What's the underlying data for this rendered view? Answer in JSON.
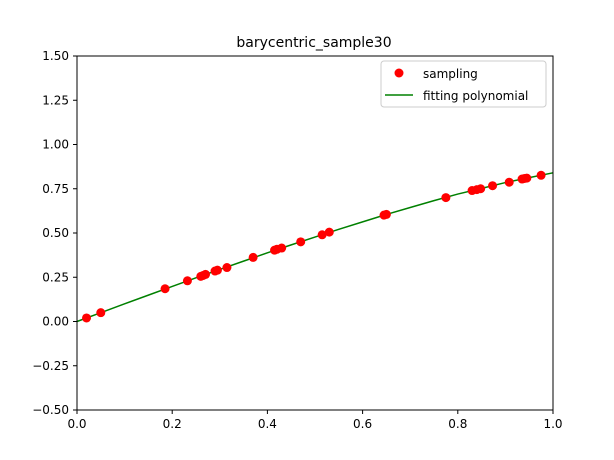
{
  "chart_data": {
    "type": "scatter",
    "title": "barycentric_sample30",
    "xlabel": "",
    "ylabel": "",
    "xlim": [
      0.0,
      1.0
    ],
    "ylim": [
      -0.5,
      1.5
    ],
    "xticks": [
      "0.0",
      "0.2",
      "0.4",
      "0.6",
      "0.8",
      "1.0"
    ],
    "yticks": [
      "−0.50",
      "−0.25",
      "0.00",
      "0.25",
      "0.50",
      "0.75",
      "1.00",
      "1.25",
      "1.50"
    ],
    "grid": false,
    "legend_position": "top-right",
    "series": [
      {
        "name": "sampling",
        "kind": "points",
        "color": "#ff0000",
        "x": [
          0.02,
          0.05,
          0.185,
          0.232,
          0.26,
          0.265,
          0.27,
          0.29,
          0.295,
          0.315,
          0.37,
          0.415,
          0.42,
          0.43,
          0.47,
          0.515,
          0.53,
          0.645,
          0.65,
          0.775,
          0.83,
          0.84,
          0.848,
          0.873,
          0.908,
          0.935,
          0.94,
          0.945,
          0.975
        ],
        "y": [
          0.02,
          0.05,
          0.185,
          0.23,
          0.255,
          0.26,
          0.266,
          0.285,
          0.29,
          0.305,
          0.362,
          0.403,
          0.408,
          0.415,
          0.45,
          0.49,
          0.505,
          0.601,
          0.605,
          0.7,
          0.74,
          0.745,
          0.75,
          0.767,
          0.787,
          0.805,
          0.808,
          0.81,
          0.826
        ]
      },
      {
        "name": "fitting polynomial",
        "kind": "line",
        "color": "#008000",
        "x": [
          0.0,
          0.05,
          0.1,
          0.15,
          0.2,
          0.25,
          0.3,
          0.35,
          0.4,
          0.45,
          0.5,
          0.55,
          0.6,
          0.65,
          0.7,
          0.75,
          0.8,
          0.85,
          0.9,
          0.95,
          1.0
        ],
        "y": [
          0.0,
          0.05,
          0.1,
          0.149,
          0.198,
          0.247,
          0.294,
          0.341,
          0.388,
          0.433,
          0.477,
          0.521,
          0.563,
          0.605,
          0.644,
          0.683,
          0.72,
          0.752,
          0.785,
          0.813,
          0.84
        ]
      }
    ]
  }
}
